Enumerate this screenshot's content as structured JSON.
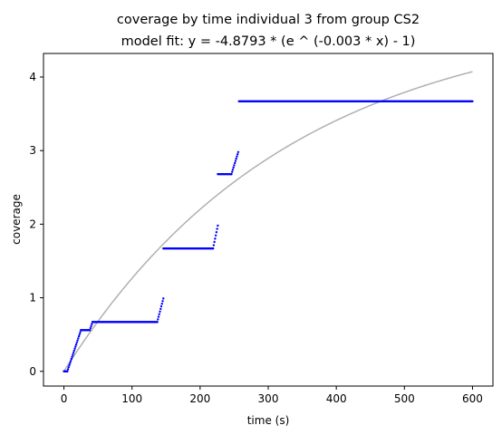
{
  "chart_data": {
    "type": "scatter",
    "title": "coverage by time individual 3 from group CS2",
    "subtitle": "model fit: y = -4.8793 * (e ^ (-0.003 * x) - 1)",
    "xlabel": "time (s)",
    "ylabel": "coverage",
    "xlim": [
      -30,
      630
    ],
    "ylim": [
      -0.2,
      4.32
    ],
    "xticks": [
      0,
      100,
      200,
      300,
      400,
      500,
      600
    ],
    "yticks": [
      0,
      1,
      2,
      3,
      4
    ],
    "grid": false,
    "colors": {
      "points": "#0000ff",
      "fit": "#b0b0b0"
    },
    "fit": {
      "a": -4.8793,
      "k": -0.003,
      "x_range": [
        0,
        600
      ]
    },
    "series": [
      {
        "style": "points",
        "segments": [
          {
            "x0": 0,
            "x1": 5,
            "step": 1,
            "y": 0.0
          },
          {
            "x0": 5,
            "x1": 25,
            "step": 1,
            "y0": 0.0,
            "y1": 0.56
          },
          {
            "x0": 25,
            "x1": 38,
            "step": 1,
            "y": 0.56
          },
          {
            "x0": 38,
            "x1": 42,
            "step": 1,
            "y0": 0.56,
            "y1": 0.67
          },
          {
            "x0": 42,
            "x1": 137,
            "step": 1,
            "y": 0.67
          },
          {
            "x0": 137,
            "x1": 146,
            "step": 1,
            "y0": 0.67,
            "y1": 0.99
          },
          {
            "x0": 146,
            "x1": 219,
            "step": 1,
            "y": 1.67
          },
          {
            "x0": 219,
            "x1": 226,
            "step": 1,
            "y0": 1.67,
            "y1": 1.98
          },
          {
            "x0": 226,
            "x1": 246,
            "step": 1,
            "y": 2.68
          },
          {
            "x0": 246,
            "x1": 256,
            "step": 1,
            "y0": 2.68,
            "y1": 2.98
          },
          {
            "x0": 257,
            "x1": 600,
            "step": 1,
            "y": 3.67
          }
        ]
      }
    ]
  }
}
